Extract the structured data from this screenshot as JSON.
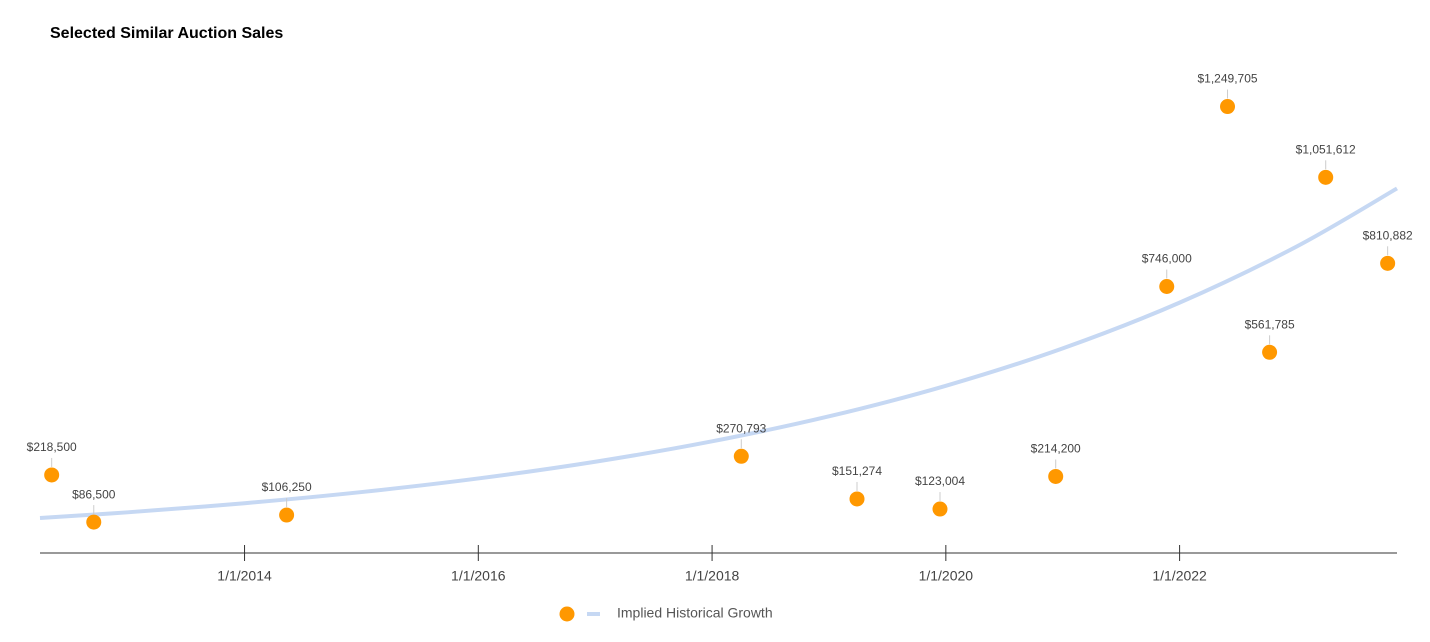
{
  "chart_data": {
    "type": "scatter",
    "title": "Selected Similar Auction Sales",
    "xlim": [
      2012.25,
      2023.86
    ],
    "xticks": [
      {
        "value": 2014,
        "label": "1/1/2014"
      },
      {
        "value": 2016,
        "label": "1/1/2016"
      },
      {
        "value": 2018,
        "label": "1/1/2018"
      },
      {
        "value": 2020,
        "label": "1/1/2020"
      },
      {
        "value": 2022,
        "label": "1/1/2022"
      }
    ],
    "ylim": [
      0,
      1380000
    ],
    "series": [
      {
        "color": "#ff9800",
        "x": [
          2012.35,
          2012.71,
          2014.36,
          2018.25,
          2019.24,
          2019.95,
          2020.94,
          2021.89,
          2022.41,
          2022.77,
          2023.25,
          2023.78
        ],
        "values": [
          218500,
          86500,
          106250,
          270793,
          151274,
          123004,
          214200,
          746000,
          1249705,
          561785,
          1051612,
          810882
        ],
        "value_labels": [
          "$218,500",
          "$86,500",
          "$106,250",
          "$270,793",
          "$151,274",
          "$123,004",
          "$214,200",
          "$746,000",
          "$1,249,705",
          "$561,785",
          "$1,051,612",
          "$810,882"
        ]
      },
      {
        "name": "Implied Historical Growth",
        "type": "line",
        "color": "#c6d8f3",
        "x": [
          2012.25,
          2013,
          2014,
          2015,
          2016,
          2017,
          2018,
          2019,
          2020,
          2021,
          2022,
          2023,
          2023.86
        ],
        "values": [
          97900,
          113900,
          139400,
          170600,
          208700,
          255400,
          312600,
          382500,
          468100,
          572800,
          700900,
          857700,
          1020500
        ]
      }
    ]
  }
}
